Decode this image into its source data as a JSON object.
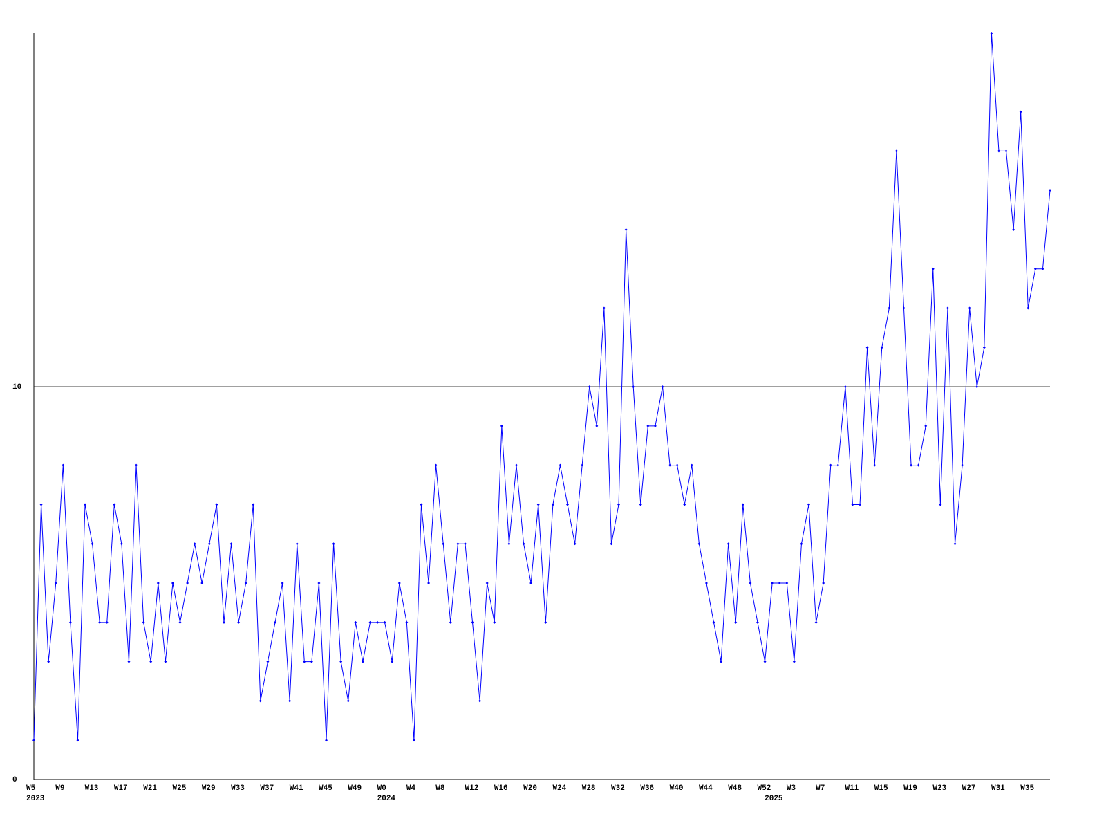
{
  "chart_data": {
    "type": "line",
    "categories": [
      "W5",
      null,
      null,
      null,
      "W9",
      null,
      null,
      null,
      "W13",
      null,
      null,
      null,
      "W17",
      null,
      null,
      null,
      "W21",
      null,
      null,
      null,
      "W25",
      null,
      null,
      null,
      "W29",
      null,
      null,
      null,
      "W33",
      null,
      null,
      null,
      "W37",
      null,
      null,
      null,
      "W41",
      null,
      null,
      null,
      "W45",
      null,
      null,
      null,
      "W49",
      null,
      null,
      null,
      "W0",
      null,
      null,
      null,
      "W4",
      null,
      null,
      null,
      "W8",
      null,
      null,
      null,
      "W12",
      null,
      null,
      null,
      "W16",
      null,
      null,
      null,
      "W20",
      null,
      null,
      null,
      "W24",
      null,
      null,
      null,
      "W28",
      null,
      null,
      null,
      "W32",
      null,
      null,
      null,
      "W36",
      null,
      null,
      null,
      "W40",
      null,
      null,
      null,
      "W44",
      null,
      null,
      null,
      "W48",
      null,
      null,
      null,
      "W52",
      null,
      null,
      null,
      "W3",
      null,
      null,
      null,
      "W7",
      null,
      null,
      null,
      "W11",
      null,
      null,
      null,
      "W15",
      null,
      null,
      null,
      "W19",
      null,
      null,
      null,
      "W23",
      null,
      null,
      null,
      "W27",
      null,
      null,
      null,
      "W31",
      null,
      null,
      null,
      "W35",
      null,
      null,
      null
    ],
    "x_groups": [
      {
        "label": "2023",
        "start": 0
      },
      {
        "label": "2024",
        "start": 48
      },
      {
        "label": "2025",
        "start": 101
      }
    ],
    "series": [
      {
        "color": "#0000ff",
        "values": [
          1,
          7,
          3,
          5,
          8,
          4,
          1,
          7,
          6,
          4,
          4,
          7,
          6,
          3,
          8,
          4,
          3,
          5,
          3,
          5,
          4,
          5,
          6,
          5,
          6,
          7,
          4,
          6,
          4,
          5,
          7,
          2,
          3,
          4,
          5,
          2,
          6,
          3,
          3,
          5,
          1,
          6,
          3,
          2,
          4,
          3,
          4,
          4,
          4,
          3,
          5,
          4,
          1,
          7,
          5,
          8,
          6,
          4,
          6,
          6,
          4,
          2,
          5,
          4,
          9,
          6,
          8,
          6,
          5,
          7,
          4,
          7,
          8,
          7,
          6,
          8,
          10,
          9,
          12,
          6,
          7,
          14,
          10,
          7,
          9,
          9,
          10,
          8,
          8,
          7,
          8,
          6,
          5,
          4,
          3,
          6,
          4,
          7,
          5,
          4,
          3,
          5,
          5,
          5,
          3,
          6,
          7,
          4,
          5,
          8,
          8,
          10,
          7,
          7,
          11,
          8,
          11,
          12,
          16,
          12,
          8,
          8,
          9,
          13,
          7,
          12,
          6,
          8,
          12,
          10,
          11,
          19,
          16,
          16,
          14,
          17,
          12,
          13,
          13,
          15
        ]
      }
    ],
    "ylim": [
      0,
      19
    ],
    "yticks": [
      0,
      10
    ],
    "grid": true
  }
}
